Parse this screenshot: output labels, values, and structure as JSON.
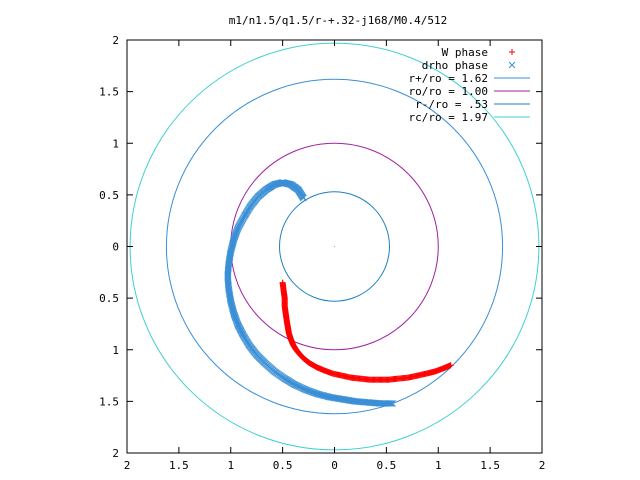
{
  "chart_data": {
    "type": "scatter",
    "title": "m1/n1.5/q1.5/r-+.32-j168/M0.4/512",
    "xlabel": "",
    "ylabel": "",
    "xlim": [
      -2,
      2
    ],
    "ylim": [
      -2,
      2
    ],
    "x_ticks": [
      "2",
      "1.5",
      "1",
      "0.5",
      "0",
      "0.5",
      "1",
      "1.5",
      "2"
    ],
    "y_ticks": [
      "2",
      "1.5",
      "1",
      "0.5",
      "0",
      "0.5",
      "1",
      "1.5",
      "2"
    ],
    "x_tick_values": [
      -2,
      -1.5,
      -1,
      -0.5,
      0,
      0.5,
      1,
      1.5,
      2
    ],
    "y_tick_values": [
      2,
      1.5,
      1,
      0.5,
      0,
      -0.5,
      -1,
      -1.5,
      -2
    ],
    "grid": false,
    "legend_position": "top-right",
    "series": [
      {
        "name": "W phase",
        "kind": "points",
        "marker": "plus",
        "color": "#ff0000",
        "x": [
          -0.5,
          -0.49,
          -0.48,
          -0.48,
          -0.47,
          -0.46,
          -0.45,
          -0.44,
          -0.42,
          -0.4,
          -0.37,
          -0.33,
          -0.29,
          -0.24,
          -0.17,
          -0.1,
          -0.02,
          0.07,
          0.16,
          0.25,
          0.34,
          0.43,
          0.52,
          0.61,
          0.71,
          0.8,
          0.89,
          0.97,
          1.05,
          1.12
        ],
        "y": [
          -0.35,
          -0.43,
          -0.5,
          -0.58,
          -0.65,
          -0.72,
          -0.78,
          -0.84,
          -0.9,
          -0.95,
          -1.0,
          -1.05,
          -1.09,
          -1.13,
          -1.17,
          -1.2,
          -1.23,
          -1.25,
          -1.27,
          -1.28,
          -1.29,
          -1.29,
          -1.29,
          -1.28,
          -1.27,
          -1.25,
          -1.23,
          -1.21,
          -1.18,
          -1.15
        ]
      },
      {
        "name": "drho phase",
        "kind": "points",
        "marker": "x",
        "color": "#3a8fd6",
        "x": [
          -0.3,
          -0.35,
          -0.42,
          -0.5,
          -0.58,
          -0.66,
          -0.74,
          -0.81,
          -0.87,
          -0.93,
          -0.97,
          -1.0,
          -1.02,
          -1.03,
          -1.02,
          -1.0,
          -0.97,
          -0.93,
          -0.88,
          -0.82,
          -0.75,
          -0.67,
          -0.58,
          -0.48,
          -0.38,
          -0.27,
          -0.16,
          -0.04,
          0.08,
          0.2,
          0.32,
          0.44,
          0.56
        ],
        "y": [
          0.47,
          0.55,
          0.6,
          0.62,
          0.6,
          0.55,
          0.48,
          0.39,
          0.29,
          0.18,
          0.07,
          -0.05,
          -0.17,
          -0.29,
          -0.41,
          -0.53,
          -0.65,
          -0.76,
          -0.86,
          -0.96,
          -1.05,
          -1.13,
          -1.21,
          -1.28,
          -1.34,
          -1.39,
          -1.43,
          -1.46,
          -1.48,
          -1.5,
          -1.51,
          -1.52,
          -1.52
        ]
      },
      {
        "name": "r+/ro = 1.62",
        "kind": "circle",
        "radius": 1.62,
        "color": "#3a8fd6"
      },
      {
        "name": "ro/ro = 1.00",
        "kind": "circle",
        "radius": 1.0,
        "color": "#a020a0"
      },
      {
        "name": "r-/ro = .53",
        "kind": "circle",
        "radius": 0.53,
        "color": "#1f7fc0"
      },
      {
        "name": "rc/ro = 1.97",
        "kind": "circle",
        "radius": 1.97,
        "color": "#40d0d0"
      }
    ]
  }
}
